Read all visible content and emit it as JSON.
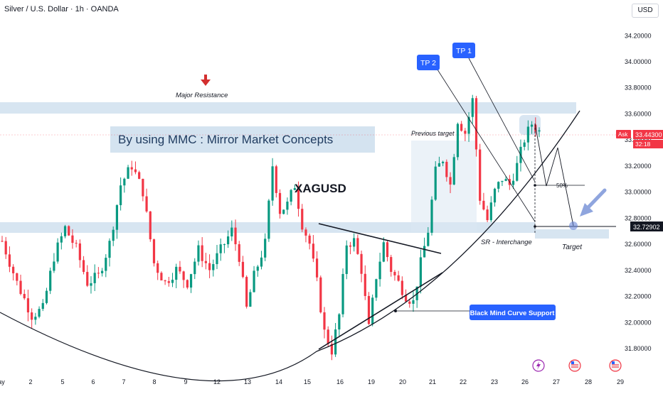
{
  "header": {
    "symbol": "Silver / U.S. Dollar · 1h · OANDA",
    "currency": "USD"
  },
  "chart_data": {
    "type": "candlestick",
    "instrument": "XAGUSD",
    "y_axis": {
      "ticks": [
        "34.20000",
        "34.00000",
        "33.80000",
        "33.60000",
        "33.40000",
        "33.20000",
        "33.00000",
        "32.80000",
        "32.60000",
        "32.40000",
        "32.20000",
        "32.00000",
        "31.80000"
      ],
      "range": [
        31.66,
        34.3
      ]
    },
    "x_axis": {
      "ticks": [
        "ay",
        "2",
        "5",
        "6",
        "7",
        "8",
        "9",
        "12",
        "13",
        "14",
        "15",
        "16",
        "19",
        "20",
        "21",
        "22",
        "23",
        "26",
        "27",
        "28",
        "29"
      ]
    },
    "price_labels": {
      "ask_label": "Ask",
      "ask_price": "33.44300",
      "ask_time": "32:18",
      "target_price": "32.72902"
    },
    "annotations": {
      "title": "By using MMC : Mirror Market Concepts",
      "symbol_label": "XAGUSD",
      "major_resistance": "Major Resistance",
      "previous_target": "Previous target",
      "sr_interchange": "SR - Interchange",
      "target": "Target",
      "fifty": "50%",
      "tp1": "TP 1",
      "tp2": "TP 2",
      "curve_support": "Black Mind Curve Support"
    },
    "price_path": [
      [
        0,
        32.62
      ],
      [
        4,
        32.3
      ],
      [
        8,
        32.05
      ],
      [
        11,
        32.1
      ],
      [
        14,
        32.5
      ],
      [
        17,
        32.72
      ],
      [
        20,
        32.56
      ],
      [
        23,
        32.3
      ],
      [
        26,
        32.35
      ],
      [
        29,
        32.6
      ],
      [
        32,
        33.05
      ],
      [
        35,
        33.2
      ],
      [
        38,
        33.0
      ],
      [
        41,
        32.45
      ],
      [
        44,
        32.3
      ],
      [
        47,
        32.4
      ],
      [
        50,
        32.3
      ],
      [
        53,
        32.55
      ],
      [
        56,
        32.4
      ],
      [
        59,
        32.55
      ],
      [
        62,
        32.7
      ],
      [
        64,
        32.5
      ],
      [
        66,
        32.1
      ],
      [
        68,
        32.35
      ],
      [
        71,
        32.6
      ],
      [
        73,
        33.2
      ],
      [
        75,
        32.85
      ],
      [
        77,
        32.9
      ],
      [
        79,
        33.05
      ],
      [
        81,
        32.75
      ],
      [
        83,
        32.6
      ],
      [
        85,
        32.3
      ],
      [
        87,
        31.92
      ],
      [
        89,
        31.78
      ],
      [
        91,
        32.05
      ],
      [
        93,
        32.6
      ],
      [
        95,
        32.62
      ],
      [
        97,
        32.4
      ],
      [
        99,
        31.95
      ],
      [
        101,
        32.35
      ],
      [
        103,
        32.6
      ],
      [
        105,
        32.4
      ],
      [
        107,
        32.3
      ],
      [
        109,
        32.2
      ],
      [
        111,
        32.15
      ],
      [
        113,
        32.45
      ],
      [
        115,
        32.7
      ],
      [
        117,
        33.15
      ],
      [
        119,
        33.25
      ],
      [
        121,
        33.05
      ],
      [
        123,
        33.55
      ],
      [
        125,
        33.45
      ],
      [
        127,
        33.7
      ],
      [
        129,
        32.95
      ],
      [
        131,
        32.78
      ],
      [
        133,
        33.0
      ],
      [
        135,
        33.1
      ],
      [
        137,
        33.05
      ],
      [
        139,
        33.2
      ],
      [
        141,
        33.4
      ],
      [
        143,
        33.52
      ],
      [
        145,
        33.46
      ]
    ],
    "colors": {
      "up": "#089981",
      "down": "#f23645",
      "zone": "#c9dcec",
      "label_blue": "#2962ff",
      "arrow_red": "#d32f2f"
    }
  }
}
